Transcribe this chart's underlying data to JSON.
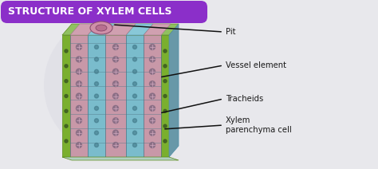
{
  "title": "STRUCTURE OF XYLEM CELLS",
  "title_bg": "#8B2FC9",
  "title_color": "#FFFFFF",
  "bg_color": "#E8E8EC",
  "labels": [
    "Pit",
    "Vessel element",
    "Tracheids",
    "Xylem\nparenchyma cell"
  ],
  "label_color": "#1A1A1A",
  "line_color": "#111111",
  "cell_colors": {
    "outer_green": "#7AAF2E",
    "outer_green_dark": "#5A8A1A",
    "pink_parenchyma": "#C898A8",
    "blue_vessel": "#7ABCCC",
    "blue_vessel_dark": "#5090A8",
    "top_blue": "#88C8D8",
    "top_green": "#90C060",
    "pit_pink": "#D090A8",
    "dot_color": "#806880"
  }
}
